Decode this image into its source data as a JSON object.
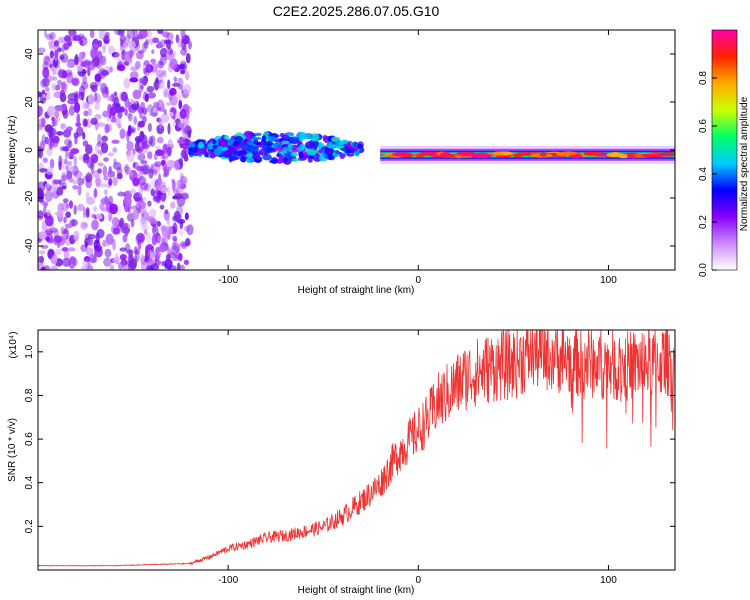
{
  "title": "C2E2.2025.286.07.05.G10",
  "colors": {
    "axis": "#000000",
    "snr_line": "#ee3333",
    "noise": "#8a2be2",
    "background": "#ffffff"
  },
  "chart_data": [
    {
      "type": "heatmap",
      "name": "spectrogram",
      "xlabel": "Height of straight line (km)",
      "ylabel": "Frequency (Hz)",
      "xlim": [
        -200,
        135
      ],
      "ylim": [
        -50,
        50
      ],
      "xticks": [
        -100,
        0,
        100
      ],
      "yticks": [
        -40,
        -20,
        0,
        20,
        40
      ],
      "xtick_labels": [
        "-100",
        "0",
        "100"
      ],
      "ytick_labels": [
        "-40",
        "-20",
        "0",
        "20",
        "40"
      ],
      "colorbar": {
        "label": "Normalized spectral amplitude",
        "range": [
          0.0,
          1.0
        ],
        "ticks": [
          0.0,
          0.2,
          0.4,
          0.6,
          0.8
        ],
        "tick_labels": [
          "0.0",
          "0.2",
          "0.4",
          "0.6",
          "0.8"
        ],
        "stops": [
          "#ffffff",
          "#cc88ff",
          "#8800ff",
          "#0000ff",
          "#00ccff",
          "#00ff66",
          "#ccff00",
          "#ffaa00",
          "#ff2200",
          "#ff00aa"
        ]
      },
      "features": [
        {
          "region": "noise",
          "x_range": [
            -200,
            -120
          ],
          "amplitude_range": [
            0.05,
            0.25
          ]
        },
        {
          "region": "ramp",
          "x_range": [
            -120,
            -30
          ],
          "freq_center": 0,
          "freq_spread": [
            3,
            10
          ],
          "amplitude_range": [
            0.2,
            0.5
          ]
        },
        {
          "region": "carrier",
          "x_range": [
            -20,
            135
          ],
          "freq_center": -2,
          "amplitude_range": [
            0.6,
            0.95
          ]
        }
      ]
    },
    {
      "type": "line",
      "name": "snr",
      "xlabel": "Height of straight line (km)",
      "ylabel": "SNR (10 * v/v)",
      "scale_label": "(x10⁴)",
      "xlim": [
        -200,
        135
      ],
      "ylim": [
        0,
        1.1
      ],
      "xticks": [
        -100,
        0,
        100
      ],
      "yticks": [
        0.2,
        0.4,
        0.6,
        0.8,
        1.0
      ],
      "xtick_labels": [
        "-100",
        "0",
        "100"
      ],
      "ytick_labels": [
        "0.2",
        "0.4",
        "0.6",
        "0.8",
        "1.0"
      ],
      "series": [
        {
          "name": "SNR",
          "x": [
            -200,
            -180,
            -160,
            -140,
            -120,
            -110,
            -100,
            -90,
            -80,
            -70,
            -60,
            -50,
            -40,
            -30,
            -20,
            -15,
            -10,
            -5,
            0,
            5,
            10,
            15,
            20,
            25,
            30,
            40,
            50,
            60,
            70,
            80,
            90,
            100,
            110,
            120,
            135
          ],
          "values": [
            0.02,
            0.02,
            0.02,
            0.025,
            0.03,
            0.06,
            0.1,
            0.12,
            0.15,
            0.16,
            0.18,
            0.2,
            0.25,
            0.32,
            0.4,
            0.48,
            0.55,
            0.6,
            0.65,
            0.7,
            0.78,
            0.82,
            0.86,
            0.9,
            0.92,
            0.95,
            0.96,
            1.02,
            1.01,
            0.98,
            0.97,
            0.96,
            0.95,
            0.97,
            0.98
          ]
        }
      ]
    }
  ]
}
